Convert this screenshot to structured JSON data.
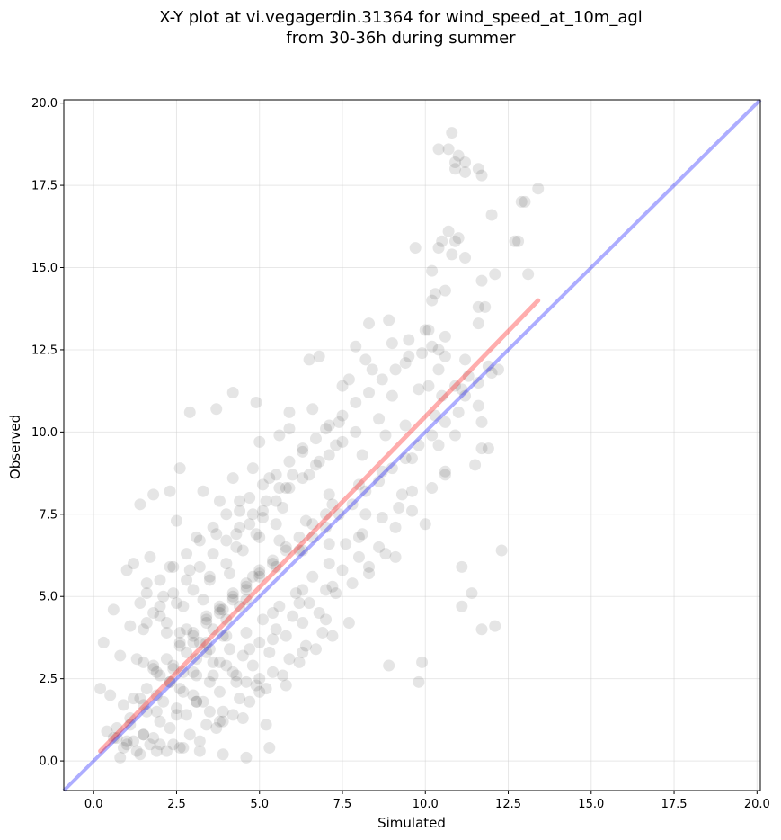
{
  "chart_data": {
    "type": "scatter",
    "title": "X-Y plot at vi.vegagerdin.31364 for wind_speed_at_10m_agl",
    "subtitle": "from 30-36h during summer",
    "xlabel": "Simulated",
    "ylabel": "Observed",
    "xlim": [
      -0.9,
      20.1
    ],
    "ylim": [
      -0.9,
      20.1
    ],
    "x_ticks": [
      0.0,
      2.5,
      5.0,
      7.5,
      10.0,
      12.5,
      15.0,
      17.5,
      20.0
    ],
    "y_ticks": [
      0.0,
      2.5,
      5.0,
      7.5,
      10.0,
      12.5,
      15.0,
      17.5,
      20.0
    ],
    "x_tick_labels": [
      "0.0",
      "2.5",
      "5.0",
      "7.5",
      "10.0",
      "12.5",
      "15.0",
      "17.5",
      "20.0"
    ],
    "y_tick_labels": [
      "0.0",
      "2.5",
      "5.0",
      "7.5",
      "10.0",
      "12.5",
      "15.0",
      "17.5",
      "20.0"
    ],
    "grid": true,
    "colors": {
      "points": "#000000",
      "identity_line": "#0000ff",
      "fit_line": "#ff0000",
      "grid": "#cccccc"
    },
    "identity_line": {
      "x": [
        -0.9,
        20.1
      ],
      "y": [
        -0.9,
        20.1
      ]
    },
    "fit_line": {
      "x": [
        0.2,
        13.4
      ],
      "y": [
        0.3,
        14.0
      ]
    },
    "series": [
      {
        "x": [
          10.8,
          10.7,
          11.0,
          11.2,
          11.2,
          10.9,
          10.9,
          10.4,
          10.4,
          10.5,
          12.9,
          13.0,
          13.4,
          11.6,
          11.7,
          12.0,
          12.7,
          12.8,
          10.7,
          10.9,
          11.0,
          10.8,
          10.2,
          9.7,
          11.2,
          13.1,
          12.1,
          11.7,
          11.8,
          10.3,
          10.6,
          10.2,
          11.6,
          10.4,
          11.6,
          10.1,
          8.3,
          8.9,
          9.5,
          10.0,
          10.2,
          10.6,
          10.6,
          11.2,
          11.9,
          11.3,
          10.9,
          11.2,
          11.6,
          12.2,
          7.9,
          8.2,
          9.0,
          9.4,
          9.9,
          10.1,
          10.4,
          11.1,
          11.6,
          12.0,
          6.5,
          6.8,
          7.5,
          7.7,
          8.4,
          9.0,
          9.8,
          10.5,
          11.0,
          11.7,
          5.9,
          6.6,
          7.0,
          7.4,
          7.9,
          8.6,
          9.4,
          10.3,
          10.9,
          11.9,
          5.0,
          5.6,
          6.3,
          6.8,
          7.3,
          8.1,
          8.8,
          9.6,
          10.4,
          11.5,
          4.2,
          4.8,
          5.3,
          5.8,
          6.5,
          7.1,
          8.0,
          8.7,
          9.6,
          10.6,
          3.3,
          3.8,
          4.4,
          5.1,
          5.7,
          6.4,
          7.2,
          8.2,
          9.2,
          10.0,
          2.5,
          3.1,
          3.7,
          4.3,
          4.9,
          5.6,
          6.3,
          7.1,
          8.0,
          9.1,
          1.7,
          2.3,
          2.9,
          3.5,
          4.1,
          4.8,
          5.5,
          6.3,
          7.2,
          8.3,
          1.0,
          1.6,
          2.1,
          2.7,
          3.3,
          3.9,
          4.6,
          5.4,
          6.2,
          7.0,
          0.6,
          1.1,
          1.6,
          2.2,
          2.8,
          3.4,
          4.0,
          4.7,
          5.4,
          6.3,
          0.3,
          0.8,
          1.3,
          1.8,
          2.4,
          3.0,
          3.6,
          4.3,
          5.0,
          5.8,
          0.2,
          0.5,
          0.9,
          1.4,
          1.9,
          2.5,
          3.1,
          3.8,
          4.5,
          5.2,
          0.4,
          0.7,
          1.0,
          1.5,
          2.0,
          2.6,
          3.2,
          3.9,
          4.6,
          5.3,
          2.9,
          3.7,
          4.2,
          4.9,
          5.9,
          1.4,
          1.8,
          2.3,
          1.2,
          2.6,
          9.9,
          9.8,
          8.9,
          11.1,
          11.4,
          11.7,
          12.1,
          12.3,
          11.1,
          11.7,
          10.6,
          10.2,
          9.6,
          9.1,
          8.6,
          8.0,
          7.5,
          7.0,
          6.5,
          6.0,
          5.5,
          5.0,
          4.5,
          4.0,
          3.5,
          3.0,
          2.5,
          2.0,
          1.5,
          1.0,
          8.8,
          8.3,
          7.8,
          7.3,
          6.8,
          6.3,
          5.8,
          5.3,
          4.8,
          4.3,
          3.8,
          3.3,
          2.8,
          2.3,
          1.8,
          1.3,
          0.8,
          9.3,
          8.7,
          8.1,
          7.6,
          7.1,
          6.6,
          6.1,
          5.6,
          5.1,
          4.6,
          4.1,
          3.6,
          3.1,
          2.6,
          2.1,
          1.6,
          1.1,
          0.6,
          6.9,
          6.4,
          5.9,
          5.4,
          4.9,
          4.4,
          3.9,
          3.4,
          2.9,
          2.4,
          1.9,
          1.4,
          0.9,
          7.7,
          7.2,
          6.7,
          6.2,
          5.7,
          5.2,
          4.7,
          4.2,
          3.7,
          3.2,
          2.7,
          2.2,
          1.7,
          1.2,
          5.5,
          5.0,
          4.5,
          4.0,
          3.5,
          3.0,
          2.5,
          2.0,
          1.5,
          6.0,
          5.6,
          5.2,
          4.8,
          4.4,
          4.0,
          3.6,
          3.2,
          2.8,
          2.4,
          2.0,
          5.0,
          4.6,
          4.2,
          3.8,
          3.4,
          3.0,
          2.6,
          2.2,
          1.8,
          1.4,
          4.4,
          4.0,
          3.6,
          3.2,
          2.8,
          2.4,
          2.0,
          1.6,
          3.9,
          3.5,
          3.1,
          2.7,
          2.3,
          1.9,
          1.5,
          4.7,
          5.1,
          5.5,
          5.9,
          6.3,
          6.7,
          7.1,
          7.5,
          7.9,
          8.3,
          8.7,
          9.1,
          9.5,
          6.2,
          6.6,
          7.0,
          7.4,
          7.8,
          8.2,
          8.6,
          9.0,
          9.4,
          9.8,
          10.2,
          10.6,
          4.3,
          4.7,
          5.1,
          5.5,
          5.9,
          6.3,
          6.7,
          7.1,
          7.5,
          3.4,
          3.8,
          4.2,
          4.6,
          5.0,
          5.4,
          5.8,
          6.2,
          6.6,
          7.0,
          2.6,
          3.0,
          3.4,
          3.8,
          4.2,
          4.6,
          5.0,
          5.4,
          5.8,
          1.8,
          2.2,
          2.6,
          3.0,
          3.4,
          3.8,
          4.2,
          4.6,
          5.0,
          1.2,
          1.6,
          2.0,
          2.4,
          2.8,
          3.2,
          3.6,
          4.0,
          4.4,
          0.7,
          1.1,
          1.5,
          1.9,
          2.3,
          2.7,
          3.1,
          3.5,
          3.9
        ],
        "y": [
          19.1,
          18.6,
          18.4,
          18.2,
          17.9,
          18.2,
          18.0,
          18.6,
          15.6,
          15.8,
          17.0,
          17.0,
          17.4,
          18.0,
          17.8,
          16.6,
          15.8,
          15.8,
          16.1,
          15.8,
          15.9,
          15.4,
          14.9,
          15.6,
          15.3,
          14.8,
          14.8,
          14.6,
          13.8,
          14.2,
          14.3,
          14.0,
          13.8,
          12.5,
          13.3,
          13.1,
          13.3,
          13.4,
          12.8,
          13.1,
          12.6,
          12.9,
          12.3,
          12.2,
          12.0,
          11.7,
          11.4,
          11.1,
          11.5,
          11.9,
          12.6,
          12.2,
          12.7,
          12.1,
          12.4,
          11.4,
          11.9,
          11.3,
          10.8,
          11.8,
          12.2,
          12.3,
          11.4,
          11.6,
          11.9,
          11.1,
          11.3,
          11.1,
          10.6,
          10.3,
          10.6,
          10.7,
          10.1,
          10.3,
          10.0,
          10.4,
          10.2,
          10.5,
          9.9,
          9.5,
          9.7,
          9.9,
          9.4,
          9.1,
          9.6,
          9.3,
          9.9,
          9.2,
          9.6,
          9.0,
          8.6,
          8.9,
          8.6,
          8.3,
          8.7,
          8.1,
          8.4,
          8.8,
          8.2,
          8.8,
          8.2,
          7.9,
          7.6,
          7.4,
          7.7,
          7.3,
          7.8,
          7.5,
          7.7,
          7.2,
          7.3,
          6.8,
          6.9,
          6.5,
          6.9,
          6.7,
          6.4,
          6.6,
          6.8,
          6.2,
          6.2,
          5.9,
          5.8,
          5.5,
          5.7,
          5.6,
          5.9,
          5.2,
          5.3,
          5.7,
          5.8,
          5.4,
          5.0,
          4.7,
          4.9,
          4.6,
          4.9,
          4.5,
          4.8,
          4.3,
          4.6,
          4.1,
          4.2,
          3.9,
          4.0,
          3.6,
          3.8,
          3.4,
          3.7,
          3.3,
          3.6,
          3.2,
          3.1,
          2.9,
          2.8,
          2.7,
          2.6,
          2.4,
          2.5,
          2.3,
          2.2,
          2.0,
          1.7,
          1.9,
          1.5,
          1.4,
          1.8,
          1.2,
          1.3,
          1.1,
          0.9,
          0.7,
          0.6,
          0.8,
          0.5,
          0.4,
          0.3,
          0.2,
          0.1,
          0.4,
          10.6,
          10.7,
          11.2,
          10.9,
          10.1,
          7.8,
          8.1,
          8.2,
          6.0,
          8.9,
          3.0,
          2.4,
          2.9,
          4.7,
          5.1,
          4.0,
          4.1,
          6.4,
          5.9,
          9.5,
          8.7,
          8.3,
          7.6,
          7.1,
          6.5,
          6.2,
          5.8,
          5.2,
          4.8,
          4.4,
          4.0,
          3.6,
          3.2,
          2.9,
          2.4,
          2.0,
          1.6,
          1.2,
          0.8,
          0.5,
          6.3,
          5.9,
          5.4,
          5.1,
          4.5,
          4.2,
          3.8,
          3.3,
          2.9,
          2.6,
          2.1,
          1.8,
          1.4,
          1.0,
          0.7,
          0.3,
          0.1,
          8.1,
          7.4,
          6.9,
          6.6,
          6.0,
          5.6,
          5.1,
          4.7,
          4.3,
          3.9,
          3.4,
          3.0,
          2.6,
          2.2,
          1.8,
          1.5,
          1.1,
          0.7,
          3.9,
          3.5,
          3.1,
          2.7,
          2.3,
          1.9,
          1.5,
          1.1,
          0.8,
          0.5,
          0.3,
          0.2,
          0.4,
          4.2,
          3.8,
          3.4,
          3.0,
          2.6,
          2.2,
          1.8,
          1.4,
          1.0,
          0.6,
          0.4,
          0.3,
          0.5,
          0.6,
          7.2,
          6.8,
          6.4,
          6.0,
          5.6,
          5.2,
          4.8,
          4.4,
          4.0,
          8.7,
          8.3,
          7.9,
          7.5,
          7.1,
          6.7,
          6.3,
          5.9,
          5.5,
          5.1,
          4.7,
          2.1,
          2.4,
          2.7,
          3.0,
          3.3,
          3.6,
          3.9,
          4.2,
          4.5,
          4.8,
          7.9,
          7.5,
          7.1,
          6.7,
          6.3,
          5.9,
          5.5,
          5.1,
          1.2,
          1.5,
          1.8,
          2.1,
          2.4,
          2.7,
          3.0,
          8.0,
          8.4,
          8.7,
          9.1,
          9.5,
          9.8,
          10.2,
          10.5,
          10.9,
          11.2,
          11.6,
          11.9,
          12.3,
          6.4,
          6.8,
          7.1,
          7.5,
          7.8,
          8.2,
          8.5,
          8.9,
          9.2,
          9.6,
          9.9,
          10.3,
          6.9,
          7.2,
          7.6,
          7.9,
          8.3,
          8.6,
          9.0,
          9.3,
          9.7,
          4.4,
          4.7,
          5.1,
          5.4,
          5.8,
          6.1,
          6.5,
          6.8,
          7.2,
          7.5,
          3.6,
          3.9,
          4.3,
          4.6,
          5.0,
          5.3,
          5.7,
          6.0,
          6.4,
          2.8,
          3.1,
          3.5,
          3.8,
          4.2,
          4.5,
          4.9,
          5.2,
          5.6,
          1.9,
          2.2,
          2.6,
          2.9,
          3.3,
          3.6,
          4.0,
          4.3,
          4.7,
          1.0,
          1.3,
          1.7,
          2.0,
          2.4,
          2.7,
          3.1,
          3.4,
          3.8
        ]
      }
    ]
  }
}
